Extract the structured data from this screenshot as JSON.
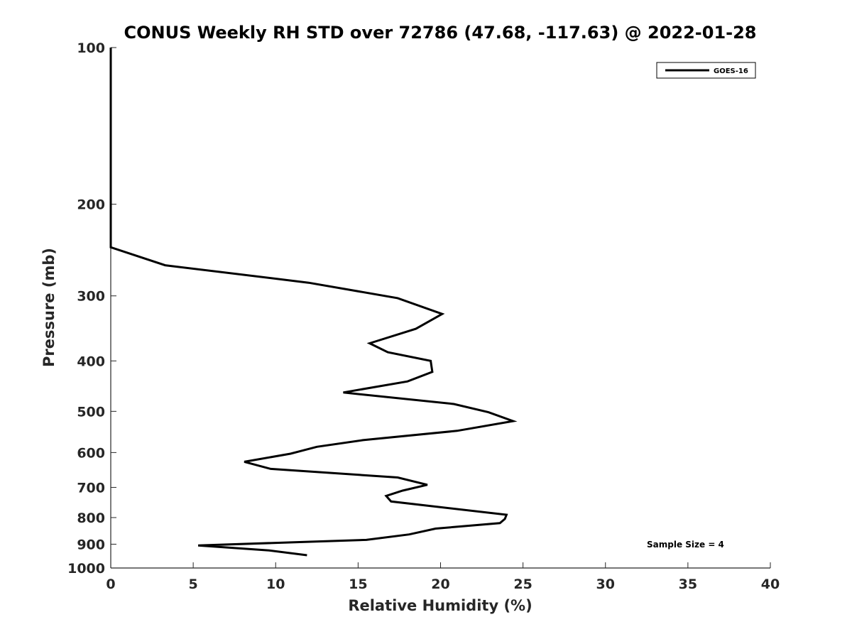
{
  "chart_data": {
    "type": "line",
    "title": "CONUS Weekly RH STD over 72786 (47.68, -117.63) @ 2022-01-28",
    "xlabel": "Relative Humidity (%)",
    "ylabel": "Pressure (mb)",
    "xlim": [
      0,
      40
    ],
    "ylim": [
      100,
      1000
    ],
    "y_scale": "log",
    "y_reversed": true,
    "x_ticks": [
      0,
      5,
      10,
      15,
      20,
      25,
      30,
      35,
      40
    ],
    "x_tick_labels": [
      "0",
      "5",
      "10",
      "15",
      "20",
      "25",
      "30",
      "35",
      "40"
    ],
    "y_ticks": [
      100,
      200,
      300,
      400,
      500,
      600,
      700,
      800,
      900,
      1000
    ],
    "y_tick_labels": [
      "100",
      "200",
      "300",
      "400",
      "500",
      "600",
      "700",
      "800",
      "900",
      "1000"
    ],
    "grid": false,
    "legend_position": "top-right",
    "annotation": "Sample Size = 4",
    "series": [
      {
        "name": "GOES-16",
        "color": "#000000",
        "x": [
          0,
          0,
          0,
          0,
          3.3,
          12,
          17.4,
          20.1,
          18.5,
          15.7,
          16.8,
          19.4,
          19.5,
          18.0,
          14.1,
          20.8,
          22.9,
          24.4,
          21.0,
          15.3,
          12.5,
          10.9,
          8.1,
          9.7,
          17.4,
          19.2,
          17.7,
          16.7,
          17.0,
          24.0,
          23.9,
          23.6,
          19.7,
          18.1,
          15.5,
          5.3,
          9.6,
          11.9
        ],
        "y": [
          100,
          150,
          200,
          242,
          262,
          283,
          303,
          325,
          347,
          370,
          385,
          400,
          420,
          438,
          460,
          484,
          502,
          522,
          545,
          568,
          585,
          603,
          625,
          645,
          670,
          692,
          710,
          727,
          745,
          790,
          805,
          820,
          840,
          862,
          883,
          905,
          925,
          945
        ]
      }
    ]
  }
}
